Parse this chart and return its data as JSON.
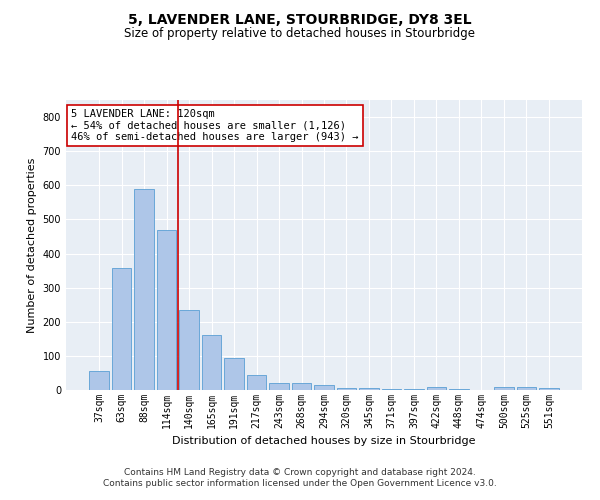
{
  "title": "5, LAVENDER LANE, STOURBRIDGE, DY8 3EL",
  "subtitle": "Size of property relative to detached houses in Stourbridge",
  "xlabel": "Distribution of detached houses by size in Stourbridge",
  "ylabel": "Number of detached properties",
  "categories": [
    "37sqm",
    "63sqm",
    "88sqm",
    "114sqm",
    "140sqm",
    "165sqm",
    "191sqm",
    "217sqm",
    "243sqm",
    "268sqm",
    "294sqm",
    "320sqm",
    "345sqm",
    "371sqm",
    "397sqm",
    "422sqm",
    "448sqm",
    "474sqm",
    "500sqm",
    "525sqm",
    "551sqm"
  ],
  "values": [
    55,
    357,
    590,
    469,
    235,
    162,
    95,
    44,
    20,
    20,
    14,
    7,
    5,
    3,
    2,
    10,
    2,
    0,
    10,
    10,
    7
  ],
  "bar_color": "#aec6e8",
  "bar_edge_color": "#5a9fd4",
  "vline_x": 3.5,
  "vline_color": "#cc0000",
  "annotation_text": "5 LAVENDER LANE: 120sqm\n← 54% of detached houses are smaller (1,126)\n46% of semi-detached houses are larger (943) →",
  "annotation_box_color": "#ffffff",
  "annotation_box_edge_color": "#cc0000",
  "ylim": [
    0,
    850
  ],
  "yticks": [
    0,
    100,
    200,
    300,
    400,
    500,
    600,
    700,
    800
  ],
  "background_color": "#e8eef5",
  "grid_color": "#ffffff",
  "footer": "Contains HM Land Registry data © Crown copyright and database right 2024.\nContains public sector information licensed under the Open Government Licence v3.0.",
  "title_fontsize": 10,
  "subtitle_fontsize": 8.5,
  "xlabel_fontsize": 8,
  "ylabel_fontsize": 8,
  "tick_fontsize": 7,
  "footer_fontsize": 6.5,
  "annotation_fontsize": 7.5
}
